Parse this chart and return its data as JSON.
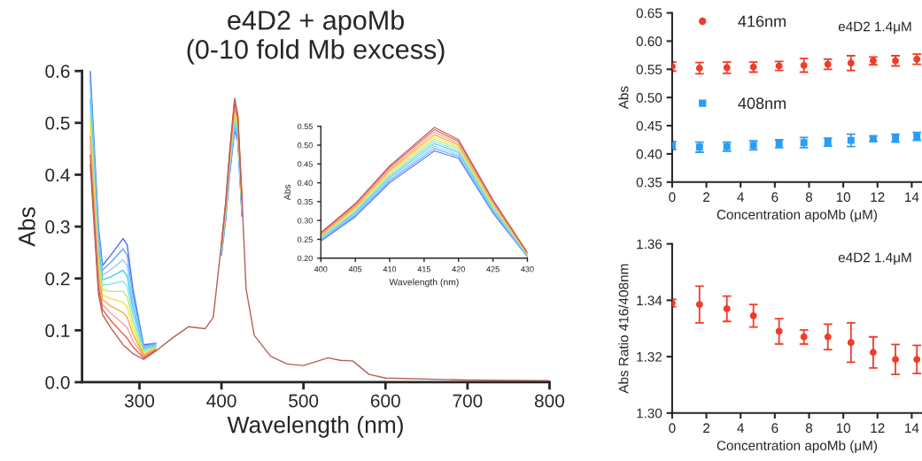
{
  "chart_data": [
    {
      "type": "line",
      "title": "e4D2 + apoMb\n(0-10 fold Mb excess)",
      "xlabel": "Wavelength (nm)",
      "ylabel": "Abs",
      "xlim": [
        230,
        800
      ],
      "xticks": [
        300,
        400,
        500,
        600,
        700,
        800
      ],
      "ylim": [
        0,
        0.6
      ],
      "yticks": [
        {
          "value": 0,
          "label": "0.0"
        },
        0.1,
        0.2,
        0.3,
        0.4,
        0.5,
        0.6
      ],
      "grid": false,
      "legend": false,
      "line_style": "solid",
      "marker": "none",
      "x": [
        240,
        250,
        255,
        265,
        280,
        285,
        292,
        305,
        320,
        340,
        360,
        380,
        390,
        400,
        405,
        410,
        416,
        420,
        425,
        430,
        440,
        460,
        480,
        500,
        530,
        545,
        560,
        580,
        600,
        700,
        800
      ],
      "series": [
        {
          "color": "#4f6ef7",
          "values": [
            0.6,
            0.3,
            0.225,
            0.245,
            0.277,
            0.265,
            0.18,
            0.072,
            0.075,
            null,
            null,
            null,
            null,
            0.245,
            0.31,
            0.4,
            0.485,
            0.465,
            0.32,
            null,
            null,
            null,
            null,
            null,
            null,
            null,
            null,
            null,
            null,
            null,
            null
          ]
        },
        {
          "color": "#5fa8f5",
          "values": [
            0.582,
            0.287,
            0.216,
            0.231,
            0.257,
            0.245,
            0.168,
            0.069,
            0.074,
            null,
            null,
            null,
            null,
            0.247,
            0.314,
            0.405,
            0.491,
            0.47,
            0.324,
            null,
            null,
            null,
            null,
            null,
            null,
            null,
            null,
            null,
            null,
            null,
            null
          ]
        },
        {
          "color": "#9cc8f5",
          "values": [
            0.564,
            0.274,
            0.206,
            0.217,
            0.236,
            0.225,
            0.155,
            0.066,
            0.072,
            null,
            null,
            null,
            null,
            0.25,
            0.317,
            0.409,
            0.497,
            0.475,
            0.327,
            null,
            null,
            null,
            null,
            null,
            null,
            null,
            null,
            null,
            null,
            null,
            null
          ]
        },
        {
          "color": "#3fcff0",
          "values": [
            0.546,
            0.261,
            0.197,
            0.203,
            0.216,
            0.205,
            0.143,
            0.064,
            0.071,
            null,
            null,
            null,
            null,
            0.252,
            0.321,
            0.414,
            0.504,
            0.48,
            0.331,
            null,
            null,
            null,
            null,
            null,
            null,
            null,
            null,
            null,
            null,
            null,
            null
          ]
        },
        {
          "color": "#7fe3f2",
          "values": [
            0.528,
            0.248,
            0.187,
            0.189,
            0.195,
            0.185,
            0.13,
            0.061,
            0.069,
            null,
            null,
            null,
            null,
            0.254,
            0.324,
            0.418,
            0.51,
            0.485,
            0.334,
            null,
            null,
            null,
            null,
            null,
            null,
            null,
            null,
            null,
            null,
            null,
            null
          ]
        },
        {
          "color": "#b8e86a",
          "values": [
            0.51,
            0.235,
            0.178,
            0.175,
            0.175,
            0.165,
            0.118,
            0.058,
            0.068,
            null,
            null,
            null,
            null,
            0.257,
            0.328,
            0.423,
            0.516,
            0.49,
            0.338,
            null,
            null,
            null,
            null,
            null,
            null,
            null,
            null,
            null,
            null,
            null,
            null
          ]
        },
        {
          "color": "#f5e23c",
          "values": [
            0.492,
            0.222,
            0.168,
            0.161,
            0.154,
            0.145,
            0.105,
            0.055,
            0.066,
            null,
            null,
            null,
            null,
            0.259,
            0.331,
            0.427,
            0.522,
            0.495,
            0.341,
            null,
            null,
            null,
            null,
            null,
            null,
            null,
            null,
            null,
            null,
            null,
            null
          ]
        },
        {
          "color": "#f5a43c",
          "values": [
            0.474,
            0.209,
            0.159,
            0.147,
            0.134,
            0.125,
            0.093,
            0.052,
            0.065,
            null,
            null,
            null,
            null,
            0.261,
            0.335,
            0.432,
            0.528,
            0.5,
            0.345,
            null,
            null,
            null,
            null,
            null,
            null,
            null,
            null,
            null,
            null,
            null,
            null
          ]
        },
        {
          "color": "#f5a0a0",
          "values": [
            0.456,
            0.196,
            0.149,
            0.133,
            0.113,
            0.105,
            0.08,
            0.05,
            0.063,
            null,
            null,
            null,
            null,
            0.263,
            0.338,
            0.436,
            0.535,
            0.505,
            0.348,
            null,
            null,
            null,
            null,
            null,
            null,
            null,
            null,
            null,
            null,
            null,
            null
          ]
        },
        {
          "color": "#e8553c",
          "values": [
            0.438,
            0.183,
            0.14,
            0.119,
            0.093,
            0.085,
            0.068,
            0.047,
            0.062,
            null,
            null,
            null,
            null,
            0.266,
            0.342,
            0.441,
            0.541,
            0.51,
            0.352,
            null,
            null,
            null,
            null,
            null,
            null,
            null,
            null,
            null,
            null,
            null,
            null
          ]
        },
        {
          "color": "#b5605a",
          "values": [
            0.42,
            0.17,
            0.13,
            0.105,
            0.072,
            0.065,
            0.055,
            0.044,
            0.06,
            0.085,
            0.107,
            0.103,
            0.125,
            0.268,
            0.345,
            0.445,
            0.547,
            0.515,
            0.355,
            0.18,
            0.09,
            0.05,
            0.035,
            0.032,
            0.047,
            0.042,
            0.041,
            0.015,
            0.008,
            0.004,
            0.003
          ]
        }
      ]
    },
    {
      "type": "line",
      "xlabel": "Wavelength (nm)",
      "ylabel": "Abs",
      "xlim": [
        400,
        430
      ],
      "xticks": [
        400,
        405,
        410,
        415,
        420,
        425,
        430
      ],
      "ylim": [
        0.2,
        0.55
      ],
      "yticks": [
        {
          "value": 0.2,
          "label": "0.20"
        },
        0.25,
        {
          "value": 0.3,
          "label": "0.30"
        },
        0.35,
        {
          "value": 0.4,
          "label": "0.40"
        },
        0.45,
        {
          "value": 0.5,
          "label": "0.50"
        },
        0.55
      ],
      "grid": false,
      "legend": false,
      "line_style": "solid",
      "marker": "none",
      "x": [
        400,
        405,
        410,
        416.5,
        420,
        425,
        430
      ],
      "series": [
        {
          "color": "#4f6ef7",
          "values": [
            0.245,
            0.31,
            0.4,
            0.485,
            0.465,
            0.32,
            0.203
          ]
        },
        {
          "color": "#5fa8f5",
          "values": [
            0.247,
            0.314,
            0.405,
            0.491,
            0.47,
            0.324,
            0.204
          ]
        },
        {
          "color": "#9cc8f5",
          "values": [
            0.25,
            0.317,
            0.409,
            0.497,
            0.475,
            0.327,
            0.205
          ]
        },
        {
          "color": "#3fcff0",
          "values": [
            0.252,
            0.321,
            0.414,
            0.504,
            0.48,
            0.331,
            0.207
          ]
        },
        {
          "color": "#7fe3f2",
          "values": [
            0.254,
            0.324,
            0.418,
            0.51,
            0.485,
            0.334,
            0.208
          ]
        },
        {
          "color": "#b8e86a",
          "values": [
            0.257,
            0.328,
            0.423,
            0.516,
            0.49,
            0.338,
            0.209
          ]
        },
        {
          "color": "#f5e23c",
          "values": [
            0.259,
            0.331,
            0.427,
            0.522,
            0.495,
            0.341,
            0.21
          ]
        },
        {
          "color": "#f5a43c",
          "values": [
            0.261,
            0.335,
            0.432,
            0.528,
            0.5,
            0.345,
            0.211
          ]
        },
        {
          "color": "#f5a0a0",
          "values": [
            0.263,
            0.338,
            0.436,
            0.535,
            0.505,
            0.348,
            0.213
          ]
        },
        {
          "color": "#e8553c",
          "values": [
            0.266,
            0.342,
            0.441,
            0.541,
            0.51,
            0.352,
            0.214
          ]
        },
        {
          "color": "#b5605a",
          "values": [
            0.268,
            0.345,
            0.445,
            0.547,
            0.515,
            0.355,
            0.215
          ]
        }
      ]
    },
    {
      "type": "scatter",
      "xlabel": "Concentration apoMb (μM)",
      "ylabel": "Abs",
      "xlim": [
        0,
        14.6
      ],
      "xticks": [
        0,
        2,
        4,
        6,
        8,
        10,
        12,
        14
      ],
      "ylim": [
        0.35,
        0.65
      ],
      "yticks": [
        0.35,
        {
          "value": 0.4,
          "label": "0.40"
        },
        0.45,
        {
          "value": 0.5,
          "label": "0.50"
        },
        0.55,
        {
          "value": 0.6,
          "label": "0.60"
        },
        0.65
      ],
      "grid": false,
      "legend": "left",
      "annotations": [
        "e4D2 1.4μM"
      ],
      "x": [
        0,
        1.6,
        3.2,
        4.75,
        6.25,
        7.7,
        9.1,
        10.45,
        11.75,
        13.05,
        14.3
      ],
      "series": [
        {
          "name": "416nm",
          "color": "#f03c28",
          "marker": "circle",
          "values": [
            0.555,
            0.552,
            0.553,
            0.554,
            0.556,
            0.557,
            0.559,
            0.561,
            0.565,
            0.565,
            0.568
          ],
          "errors": [
            0.008,
            0.01,
            0.01,
            0.009,
            0.008,
            0.012,
            0.009,
            0.013,
            0.007,
            0.009,
            0.009
          ]
        },
        {
          "name": "408nm",
          "color": "#2a9df4",
          "marker": "square",
          "values": [
            0.415,
            0.412,
            0.413,
            0.415,
            0.418,
            0.42,
            0.421,
            0.424,
            0.427,
            0.428,
            0.431
          ],
          "errors": [
            0.007,
            0.009,
            0.008,
            0.008,
            0.007,
            0.009,
            0.007,
            0.011,
            0.005,
            0.007,
            0.007
          ]
        }
      ]
    },
    {
      "type": "scatter",
      "xlabel": "Concentration apoMb (μM)",
      "ylabel": "Abs Ratio 416/408nm",
      "xlim": [
        0,
        14.6
      ],
      "xticks": [
        0,
        2,
        4,
        6,
        8,
        10,
        12,
        14
      ],
      "ylim": [
        1.3,
        1.36
      ],
      "yticks": [
        {
          "value": 1.3,
          "label": "1.30"
        },
        1.32,
        1.34,
        1.36
      ],
      "grid": false,
      "legend": false,
      "annotations": [
        "e4D2 1.4μM"
      ],
      "x": [
        0,
        1.6,
        3.2,
        4.75,
        6.25,
        7.7,
        9.1,
        10.45,
        11.75,
        13.05,
        14.3
      ],
      "series": [
        {
          "color": "#f03c28",
          "marker": "circle",
          "values": [
            1.339,
            1.3385,
            1.337,
            1.3345,
            1.329,
            1.327,
            1.327,
            1.325,
            1.3215,
            1.319,
            1.319
          ],
          "errors": [
            0.0013,
            0.0065,
            0.0045,
            0.004,
            0.0045,
            0.0025,
            0.0045,
            0.007,
            0.0055,
            0.0053,
            0.005
          ]
        }
      ]
    }
  ]
}
